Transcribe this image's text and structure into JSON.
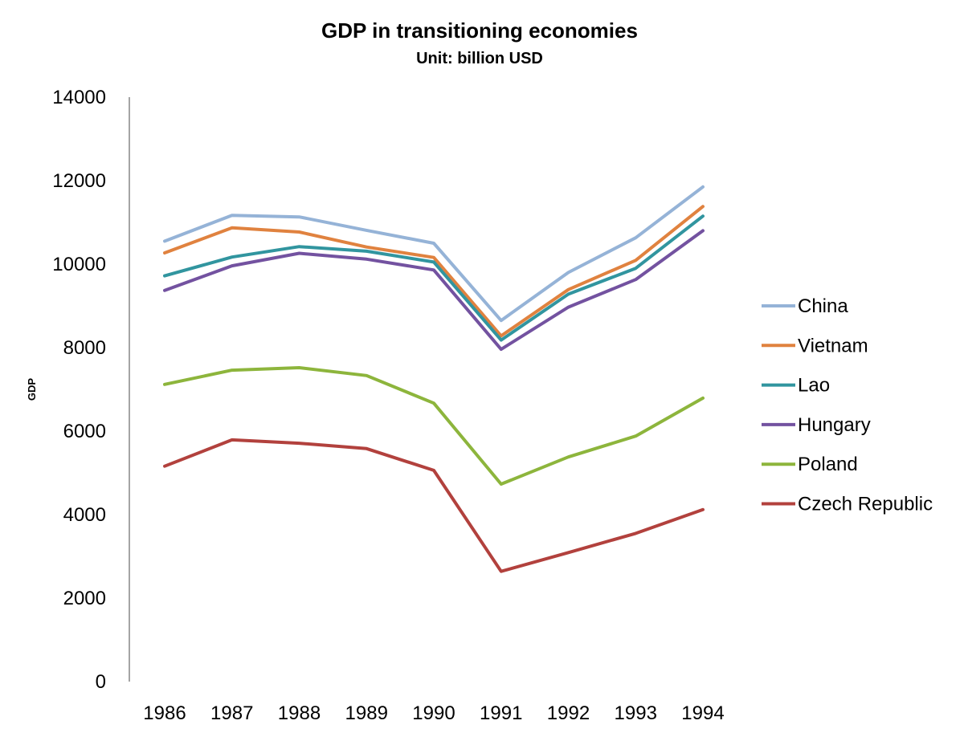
{
  "chart_data": {
    "type": "line",
    "title": "GDP in transitioning economies",
    "subtitle": "Unit: billion USD",
    "xlabel": "",
    "ylabel": "GDP",
    "categories": [
      "1986",
      "1987",
      "1988",
      "1989",
      "1990",
      "1991",
      "1992",
      "1993",
      "1994"
    ],
    "ylim": [
      0,
      14000
    ],
    "yticks": [
      0,
      2000,
      4000,
      6000,
      8000,
      10000,
      12000,
      14000
    ],
    "grid": false,
    "legend_position": "right",
    "series": [
      {
        "name": "China",
        "color": "#95B3D7",
        "values": [
          10550,
          11170,
          11130,
          10810,
          10500,
          8650,
          9800,
          10630,
          11850
        ]
      },
      {
        "name": "Vietnam",
        "color": "#E0823F",
        "values": [
          10270,
          10870,
          10770,
          10410,
          10160,
          8280,
          9390,
          10090,
          11380
        ]
      },
      {
        "name": "Lao",
        "color": "#31959F",
        "values": [
          9720,
          10170,
          10420,
          10310,
          10050,
          8180,
          9280,
          9900,
          11150
        ]
      },
      {
        "name": "Hungary",
        "color": "#7352A0",
        "values": [
          9370,
          9960,
          10260,
          10120,
          9860,
          7960,
          8970,
          9630,
          10800
        ]
      },
      {
        "name": "Poland",
        "color": "#8DB53C",
        "values": [
          7120,
          7460,
          7520,
          7330,
          6670,
          4730,
          5380,
          5880,
          6790
        ]
      },
      {
        "name": "Czech Republic",
        "color": "#B2413D",
        "values": [
          5160,
          5790,
          5710,
          5580,
          5060,
          2640,
          3090,
          3550,
          4120
        ]
      }
    ]
  }
}
